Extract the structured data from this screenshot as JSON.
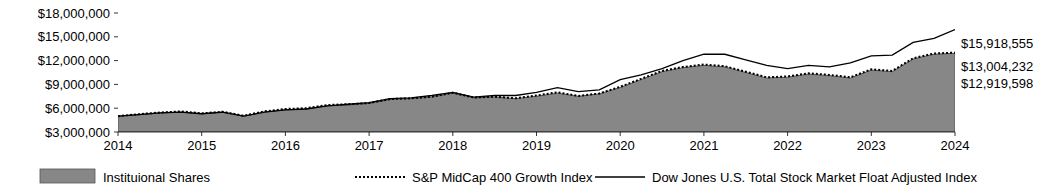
{
  "chart_data": {
    "type": "line",
    "x": [
      2014,
      2014.25,
      2014.5,
      2014.75,
      2015,
      2015.25,
      2015.5,
      2015.75,
      2016,
      2016.25,
      2016.5,
      2016.75,
      2017,
      2017.25,
      2017.5,
      2017.75,
      2018,
      2018.25,
      2018.5,
      2018.75,
      2019,
      2019.25,
      2019.5,
      2019.75,
      2020,
      2020.25,
      2020.5,
      2020.75,
      2021,
      2021.25,
      2021.5,
      2021.75,
      2022,
      2022.25,
      2022.5,
      2022.75,
      2023,
      2023.25,
      2023.5,
      2023.75,
      2024
    ],
    "xlim": [
      2014,
      2024
    ],
    "xticks": [
      2014,
      2015,
      2016,
      2017,
      2018,
      2019,
      2020,
      2021,
      2022,
      2023,
      2024
    ],
    "ylim": [
      3000000,
      18000000
    ],
    "yticks": [
      {
        "value": 3000000,
        "label": "$3,000,000"
      },
      {
        "value": 6000000,
        "label": "$6,000,000"
      },
      {
        "value": 9000000,
        "label": "$9,000,000"
      },
      {
        "value": 12000000,
        "label": "$12,000,000"
      },
      {
        "value": 15000000,
        "label": "$15,000,000"
      },
      {
        "value": 18000000,
        "label": "$18,000,000"
      }
    ],
    "legend": "bottom",
    "series": [
      {
        "name": "Instituional Shares",
        "type": "area",
        "color": "#878787",
        "values": [
          5000000,
          5200000,
          5400000,
          5500000,
          5300000,
          5500000,
          5000000,
          5500000,
          5800000,
          5900000,
          6300000,
          6400000,
          6600000,
          7100000,
          7200000,
          7400000,
          7900000,
          7300000,
          7400000,
          7200000,
          7500000,
          7900000,
          7500000,
          7800000,
          8600000,
          9600000,
          10600000,
          11100000,
          11400000,
          11200000,
          10500000,
          9800000,
          9900000,
          10300000,
          10100000,
          9800000,
          10800000,
          10600000,
          12200000,
          12800000,
          12919598
        ],
        "value_labels": [
          null,
          null,
          null,
          null,
          null,
          null,
          null,
          null,
          null,
          null,
          null,
          null,
          null,
          null,
          null,
          null,
          null,
          null,
          null,
          null,
          null,
          null,
          null,
          null,
          null,
          null,
          null,
          null,
          null,
          null,
          null,
          null,
          null,
          null,
          null,
          null,
          null,
          null,
          null,
          null,
          "$12,919,598"
        ]
      },
      {
        "name": "S&P MidCap 400 Growth Index",
        "type": "line",
        "line_style": "dotted",
        "color": "#000000",
        "values": [
          5000000,
          5250000,
          5450000,
          5600000,
          5350000,
          5550000,
          5050000,
          5600000,
          5900000,
          6000000,
          6400000,
          6500000,
          6650000,
          7150000,
          7250000,
          7450000,
          7950000,
          7350000,
          7450000,
          7250000,
          7600000,
          8000000,
          7550000,
          7850000,
          8700000,
          9700000,
          10700000,
          11200000,
          11500000,
          11300000,
          10600000,
          9900000,
          10000000,
          10400000,
          10200000,
          9900000,
          10900000,
          10700000,
          12300000,
          12900000,
          13004232
        ],
        "value_labels": [
          null,
          null,
          null,
          null,
          null,
          null,
          null,
          null,
          null,
          null,
          null,
          null,
          null,
          null,
          null,
          null,
          null,
          null,
          null,
          null,
          null,
          null,
          null,
          null,
          null,
          null,
          null,
          null,
          null,
          null,
          null,
          null,
          null,
          null,
          null,
          null,
          null,
          null,
          null,
          null,
          "$13,004,232"
        ]
      },
      {
        "name": "Dow Jones U.S. Total Stock Market Float Adjusted Index",
        "type": "line",
        "line_style": "solid",
        "color": "#000000",
        "values": [
          5000000,
          5200000,
          5400000,
          5500000,
          5300000,
          5500000,
          5000000,
          5500000,
          5800000,
          5900000,
          6300000,
          6500000,
          6700000,
          7200000,
          7300000,
          7600000,
          8000000,
          7400000,
          7600000,
          7600000,
          8000000,
          8600000,
          8100000,
          8300000,
          9600000,
          10200000,
          11000000,
          12000000,
          12800000,
          12800000,
          12100000,
          11400000,
          11000000,
          11400000,
          11200000,
          11700000,
          12600000,
          12700000,
          14300000,
          14800000,
          15918555
        ],
        "value_labels": [
          null,
          null,
          null,
          null,
          null,
          null,
          null,
          null,
          null,
          null,
          null,
          null,
          null,
          null,
          null,
          null,
          null,
          null,
          null,
          null,
          null,
          null,
          null,
          null,
          null,
          null,
          null,
          null,
          null,
          null,
          null,
          null,
          null,
          null,
          null,
          null,
          null,
          null,
          null,
          null,
          "$15,918,555"
        ]
      }
    ]
  }
}
